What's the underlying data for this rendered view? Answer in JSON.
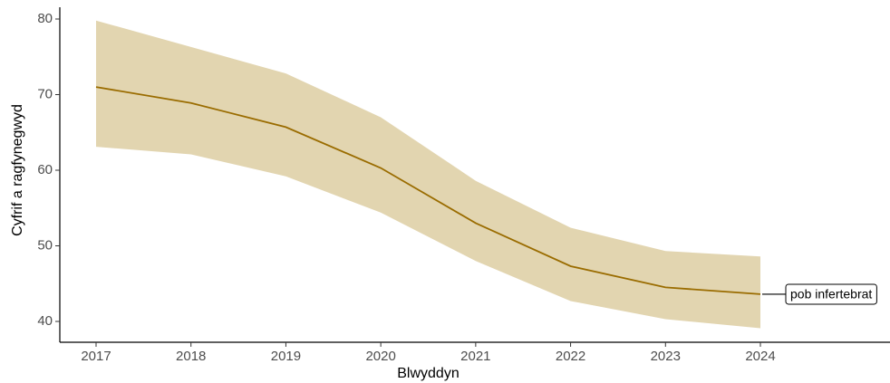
{
  "chart_data": {
    "type": "line",
    "xlabel": "Blwyddyn",
    "ylabel": "Cyfrif a ragfynegwyd",
    "x": [
      2017,
      2018,
      2019,
      2020,
      2021,
      2022,
      2023,
      2024
    ],
    "xlim": [
      2017,
      2024
    ],
    "ylim": [
      38,
      81
    ],
    "yticks": [
      40,
      50,
      60,
      70,
      80
    ],
    "series": [
      {
        "name": "pob infertebrat",
        "values": [
          71.0,
          68.9,
          65.7,
          60.3,
          53.0,
          47.3,
          44.5,
          43.6
        ],
        "lower": [
          63.1,
          62.1,
          59.2,
          54.4,
          48.0,
          42.7,
          40.3,
          39.1
        ],
        "upper": [
          79.8,
          76.3,
          72.8,
          67.0,
          58.6,
          52.4,
          49.3,
          48.6
        ]
      }
    ],
    "grid": false,
    "legend": "direct-label-right",
    "colors": {
      "line": "#9a6c00",
      "ribbon": "#e2d5b0",
      "axis": "#000000"
    }
  }
}
